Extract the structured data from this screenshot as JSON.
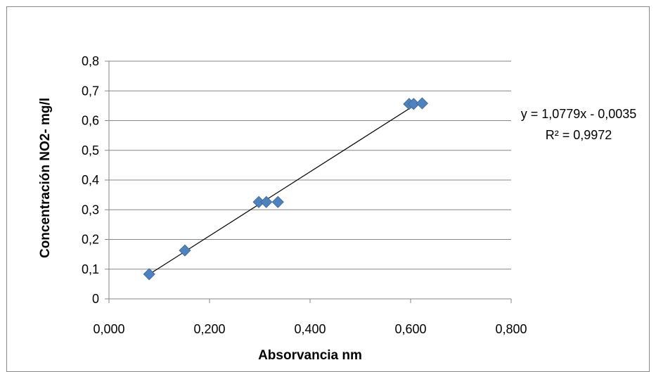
{
  "chart_data": {
    "type": "scatter",
    "title": "",
    "xlabel": "Absorvancia nm",
    "ylabel": "Concentración NO2- mg/l",
    "xlim": [
      0,
      0.8
    ],
    "ylim": [
      0,
      0.8
    ],
    "x_ticks": [
      "0,000",
      "0,200",
      "0,400",
      "0,600",
      "0,800"
    ],
    "y_ticks": [
      "0",
      "0,1",
      "0,2",
      "0,3",
      "0,4",
      "0,5",
      "0,6",
      "0,7",
      "0,8"
    ],
    "grid": "horizontal",
    "marker": "diamond",
    "series": [
      {
        "color": "#4f81bd",
        "points": [
          {
            "x": 0.08,
            "y": 0.083
          },
          {
            "x": 0.151,
            "y": 0.163
          },
          {
            "x": 0.298,
            "y": 0.326
          },
          {
            "x": 0.313,
            "y": 0.326
          },
          {
            "x": 0.336,
            "y": 0.326
          },
          {
            "x": 0.597,
            "y": 0.656
          },
          {
            "x": 0.606,
            "y": 0.656
          },
          {
            "x": 0.623,
            "y": 0.658
          }
        ]
      }
    ],
    "trendline": {
      "type": "linear",
      "slope": 1.0779,
      "intercept": -0.0035,
      "equation": "y = 1,0779x - 0,0035",
      "r2": "R² = 0,9972",
      "color": "#000000"
    },
    "gridline_color": "#868686",
    "axis_color": "#868686"
  }
}
